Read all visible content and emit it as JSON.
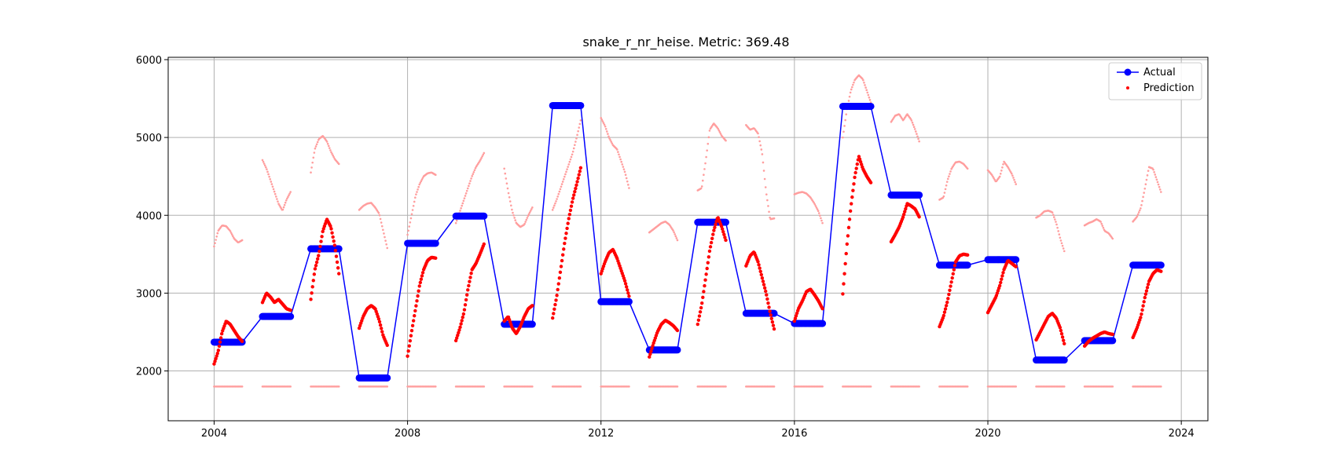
{
  "chart_data": {
    "type": "scatter",
    "title": "snake_r_nr_heise. Metric: 369.48",
    "xlabel": "",
    "ylabel": "",
    "xlim": [
      2003.05,
      2024.55
    ],
    "ylim": [
      1360,
      6030
    ],
    "xticks": [
      2004,
      2008,
      2012,
      2016,
      2020,
      2024
    ],
    "yticks": [
      2000,
      3000,
      4000,
      5000,
      6000
    ],
    "grid": true,
    "legend_position": "top-right",
    "legend": [
      "Actual",
      "Prediction"
    ],
    "colors": {
      "actual": "#0000ff",
      "prediction": "#ff0000",
      "prediction_faint": "#ff9e9e"
    },
    "series": [
      {
        "name": "Actual",
        "kind": "line-markers",
        "segments": [
          {
            "start": 2004.0,
            "end": 2004.58,
            "value": 2370
          },
          {
            "start": 2005.0,
            "end": 2005.58,
            "value": 2700
          },
          {
            "start": 2006.0,
            "end": 2006.58,
            "value": 3570
          },
          {
            "start": 2007.0,
            "end": 2007.58,
            "value": 1910
          },
          {
            "start": 2008.0,
            "end": 2008.58,
            "value": 3640
          },
          {
            "start": 2009.0,
            "end": 2009.58,
            "value": 3990
          },
          {
            "start": 2010.0,
            "end": 2010.58,
            "value": 2600
          },
          {
            "start": 2011.0,
            "end": 2011.58,
            "value": 5410
          },
          {
            "start": 2012.0,
            "end": 2012.58,
            "value": 2890
          },
          {
            "start": 2013.0,
            "end": 2013.58,
            "value": 2270
          },
          {
            "start": 2014.0,
            "end": 2014.58,
            "value": 3910
          },
          {
            "start": 2015.0,
            "end": 2015.58,
            "value": 2740
          },
          {
            "start": 2016.0,
            "end": 2016.58,
            "value": 2610
          },
          {
            "start": 2017.0,
            "end": 2017.58,
            "value": 5400
          },
          {
            "start": 2018.0,
            "end": 2018.58,
            "value": 4260
          },
          {
            "start": 2019.0,
            "end": 2019.58,
            "value": 3360
          },
          {
            "start": 2020.0,
            "end": 2020.58,
            "value": 3430
          },
          {
            "start": 2021.0,
            "end": 2021.58,
            "value": 2140
          },
          {
            "start": 2022.0,
            "end": 2022.58,
            "value": 2390
          },
          {
            "start": 2023.0,
            "end": 2023.58,
            "value": 3360
          }
        ]
      },
      {
        "name": "Prediction",
        "kind": "scatter",
        "strong_segments": [
          {
            "start": 2004.0,
            "end": 2004.58,
            "y": [
              2090,
              2250,
              2500,
              2640,
              2600,
              2520,
              2440,
              2380
            ]
          },
          {
            "start": 2005.0,
            "end": 2005.58,
            "y": [
              2880,
              3000,
              2950,
              2880,
              2920,
              2860,
              2800,
              2780
            ]
          },
          {
            "start": 2006.0,
            "end": 2006.58,
            "y": [
              2920,
              3300,
              3500,
              3800,
              3950,
              3850,
              3600,
              3250
            ]
          },
          {
            "start": 2007.0,
            "end": 2007.58,
            "y": [
              2550,
              2700,
              2800,
              2840,
              2800,
              2650,
              2450,
              2330
            ]
          },
          {
            "start": 2008.0,
            "end": 2008.58,
            "y": [
              2190,
              2500,
              2800,
              3100,
              3300,
              3420,
              3460,
              3450
            ]
          },
          {
            "start": 2009.0,
            "end": 2009.58,
            "y": [
              2390,
              2550,
              2750,
              3050,
              3300,
              3380,
              3500,
              3630
            ]
          },
          {
            "start": 2010.0,
            "end": 2010.58,
            "y": [
              2640,
              2700,
              2550,
              2480,
              2570,
              2700,
              2800,
              2840
            ]
          },
          {
            "start": 2011.0,
            "end": 2011.58,
            "y": [
              2680,
              2950,
              3300,
              3650,
              3950,
              4200,
              4400,
              4610
            ]
          },
          {
            "start": 2012.0,
            "end": 2012.58,
            "y": [
              3250,
              3400,
              3520,
              3560,
              3450,
              3300,
              3150,
              2960
            ]
          },
          {
            "start": 2013.0,
            "end": 2013.58,
            "y": [
              2180,
              2350,
              2500,
              2600,
              2650,
              2620,
              2580,
              2520
            ]
          },
          {
            "start": 2014.0,
            "end": 2014.58,
            "y": [
              2600,
              2850,
              3200,
              3550,
              3800,
              3980,
              3850,
              3680
            ]
          },
          {
            "start": 2015.0,
            "end": 2015.58,
            "y": [
              3350,
              3480,
              3530,
              3400,
              3200,
              3000,
              2750,
              2540
            ]
          },
          {
            "start": 2016.0,
            "end": 2016.58,
            "y": [
              2640,
              2800,
              2900,
              3020,
              3050,
              2980,
              2900,
              2800
            ]
          },
          {
            "start": 2017.0,
            "end": 2017.58,
            "y": [
              2990,
              3600,
              4100,
              4500,
              4760,
              4600,
              4500,
              4420
            ]
          },
          {
            "start": 2018.0,
            "end": 2018.58,
            "y": [
              3660,
              3750,
              3850,
              3980,
              4150,
              4120,
              4080,
              3980
            ]
          },
          {
            "start": 2019.0,
            "end": 2019.58,
            "y": [
              2570,
              2700,
              2900,
              3150,
              3400,
              3480,
              3500,
              3490
            ]
          },
          {
            "start": 2020.0,
            "end": 2020.58,
            "y": [
              2750,
              2850,
              2950,
              3100,
              3300,
              3420,
              3380,
              3340
            ]
          },
          {
            "start": 2021.0,
            "end": 2021.58,
            "y": [
              2400,
              2500,
              2600,
              2700,
              2740,
              2680,
              2550,
              2350
            ]
          },
          {
            "start": 2022.0,
            "end": 2022.58,
            "y": [
              2320,
              2380,
              2420,
              2450,
              2480,
              2500,
              2480,
              2470
            ]
          },
          {
            "start": 2023.0,
            "end": 2023.58,
            "y": [
              2430,
              2550,
              2700,
              2950,
              3150,
              3250,
              3300,
              3280
            ]
          }
        ],
        "faint_segments": [
          {
            "start": 2004.0,
            "end": 2004.58,
            "y": [
              3600,
              3800,
              3870,
              3860,
              3800,
              3700,
              3650,
              3680
            ]
          },
          {
            "start": 2005.0,
            "end": 2005.58,
            "y": [
              4710,
              4600,
              4450,
              4300,
              4150,
              4060,
              4200,
              4300
            ]
          },
          {
            "start": 2006.0,
            "end": 2006.58,
            "y": [
              4550,
              4850,
              4980,
              5020,
              4950,
              4820,
              4720,
              4660
            ]
          },
          {
            "start": 2007.0,
            "end": 2007.58,
            "y": [
              4070,
              4120,
              4150,
              4160,
              4100,
              4020,
              3800,
              3580
            ]
          },
          {
            "start": 2008.0,
            "end": 2008.58,
            "y": [
              3750,
              4000,
              4250,
              4400,
              4500,
              4540,
              4550,
              4520
            ]
          },
          {
            "start": 2009.0,
            "end": 2009.58,
            "y": [
              3900,
              4050,
              4200,
              4350,
              4500,
              4620,
              4700,
              4800
            ]
          },
          {
            "start": 2010.0,
            "end": 2010.58,
            "y": [
              4600,
              4300,
              4050,
              3900,
              3850,
              3880,
              4000,
              4100
            ]
          },
          {
            "start": 2011.0,
            "end": 2011.58,
            "y": [
              4070,
              4200,
              4350,
              4500,
              4650,
              4800,
              5000,
              5220
            ]
          },
          {
            "start": 2012.0,
            "end": 2012.58,
            "y": [
              5250,
              5150,
              5000,
              4900,
              4850,
              4700,
              4550,
              4350
            ]
          },
          {
            "start": 2013.0,
            "end": 2013.58,
            "y": [
              3780,
              3820,
              3860,
              3900,
              3920,
              3880,
              3800,
              3680
            ]
          },
          {
            "start": 2014.0,
            "end": 2014.58,
            "y": [
              4320,
              4350,
              4700,
              5100,
              5180,
              5120,
              5020,
              4960
            ]
          },
          {
            "start": 2015.0,
            "end": 2015.58,
            "y": [
              5160,
              5100,
              5120,
              5050,
              4800,
              4300,
              3950,
              3960
            ]
          },
          {
            "start": 2016.0,
            "end": 2016.58,
            "y": [
              4270,
              4290,
              4300,
              4280,
              4230,
              4150,
              4050,
              3900
            ]
          },
          {
            "start": 2017.0,
            "end": 2017.58,
            "y": [
              5000,
              5350,
              5600,
              5740,
              5800,
              5750,
              5600,
              5450
            ]
          },
          {
            "start": 2018.0,
            "end": 2018.58,
            "y": [
              5200,
              5280,
              5300,
              5220,
              5300,
              5230,
              5100,
              4950
            ]
          },
          {
            "start": 2019.0,
            "end": 2019.58,
            "y": [
              4200,
              4230,
              4450,
              4600,
              4680,
              4690,
              4660,
              4600
            ]
          },
          {
            "start": 2020.0,
            "end": 2020.58,
            "y": [
              4580,
              4520,
              4430,
              4500,
              4690,
              4620,
              4530,
              4400
            ]
          },
          {
            "start": 2021.0,
            "end": 2021.58,
            "y": [
              3970,
              4000,
              4050,
              4060,
              4040,
              3900,
              3700,
              3540
            ]
          },
          {
            "start": 2022.0,
            "end": 2022.58,
            "y": [
              3870,
              3900,
              3920,
              3950,
              3920,
              3800,
              3770,
              3700
            ]
          },
          {
            "start": 2023.0,
            "end": 2023.58,
            "y": [
              3920,
              3980,
              4100,
              4350,
              4620,
              4600,
              4450,
              4300
            ]
          }
        ],
        "baseline": {
          "value": 1800,
          "segment_starts": [
            2004,
            2005,
            2006,
            2007,
            2008,
            2009,
            2010,
            2011,
            2012,
            2013,
            2014,
            2015,
            2016,
            2017,
            2018,
            2019,
            2020,
            2021,
            2022,
            2023
          ],
          "segment_length": 0.58
        }
      }
    ]
  }
}
